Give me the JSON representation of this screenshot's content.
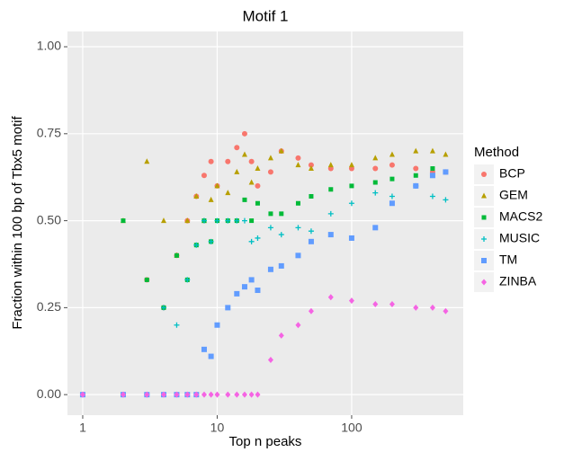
{
  "chart_data": {
    "type": "scatter",
    "title": "Motif 1",
    "x_label": "Top n peaks",
    "y_label": "Fraction within 100 bp of Tbx5 motif",
    "legend_title": "Method",
    "legend_position": "right",
    "xscale": "log",
    "grid": true,
    "xlim": [
      0.77,
      676
    ],
    "ylim": [
      -0.059,
      1.044
    ],
    "xticks": [
      1,
      10,
      100
    ],
    "yticks": [
      {
        "value": 0,
        "label": "0.00"
      },
      {
        "value": 0.25,
        "label": "0.25"
      },
      {
        "value": 0.5,
        "label": "0.50"
      },
      {
        "value": 0.75,
        "label": "0.75"
      },
      {
        "value": 1,
        "label": "1.00"
      }
    ],
    "x": [
      1,
      2,
      3,
      4,
      5,
      6,
      7,
      8,
      9,
      10,
      12,
      14,
      16,
      18,
      20,
      25,
      30,
      40,
      50,
      70,
      100,
      150,
      200,
      300,
      400,
      500
    ],
    "series": [
      {
        "name": "BCP",
        "color": "#F8766D",
        "shape": "circle",
        "values": [
          0,
          0,
          0.33,
          0.25,
          0.4,
          0.5,
          0.57,
          0.63,
          0.67,
          0.6,
          0.67,
          0.71,
          0.75,
          0.67,
          0.6,
          0.64,
          0.7,
          0.68,
          0.66,
          0.65,
          0.65,
          0.65,
          0.66,
          0.65,
          0.64,
          0.64
        ]
      },
      {
        "name": "GEM",
        "color": "#B79F00",
        "shape": "triangle",
        "values": [
          0,
          0.5,
          0.67,
          0.5,
          0.4,
          0.5,
          0.57,
          0.5,
          0.56,
          0.6,
          0.58,
          0.64,
          0.69,
          0.61,
          0.65,
          0.68,
          0.7,
          0.66,
          0.65,
          0.66,
          0.66,
          0.68,
          0.69,
          0.7,
          0.7,
          0.69
        ]
      },
      {
        "name": "MACS2",
        "color": "#00BA38",
        "shape": "smallsquare",
        "values": [
          0,
          0.5,
          0.33,
          0.25,
          0.4,
          0.33,
          0.43,
          0.5,
          0.44,
          0.5,
          0.5,
          0.5,
          0.56,
          0.5,
          0.55,
          0.52,
          0.52,
          0.55,
          0.57,
          0.59,
          0.6,
          0.61,
          0.62,
          0.63,
          0.65,
          0.64
        ]
      },
      {
        "name": "MUSIC",
        "color": "#00BFC4",
        "shape": "plus",
        "values": [
          0,
          0,
          0,
          0.25,
          0.2,
          0.33,
          0.43,
          0.5,
          0.44,
          0.5,
          0.5,
          0.5,
          0.5,
          0.44,
          0.45,
          0.48,
          0.46,
          0.48,
          0.47,
          0.52,
          0.55,
          0.58,
          0.57,
          0.6,
          0.57,
          0.56
        ]
      },
      {
        "name": "TM",
        "color": "#619CFF",
        "shape": "square",
        "values": [
          0,
          0,
          0,
          0,
          0,
          0,
          0,
          0.13,
          0.11,
          0.2,
          0.25,
          0.29,
          0.31,
          0.33,
          0.3,
          0.36,
          0.37,
          0.4,
          0.44,
          0.46,
          0.45,
          0.48,
          0.55,
          0.6,
          0.63,
          0.64
        ]
      },
      {
        "name": "ZINBA",
        "color": "#F564E3",
        "shape": "diamond",
        "values": [
          0,
          0,
          0,
          0,
          0,
          0,
          0,
          0,
          0,
          0,
          0,
          0,
          0,
          0,
          0,
          0.1,
          0.17,
          0.2,
          0.24,
          0.28,
          0.27,
          0.26,
          0.26,
          0.25,
          0.25,
          0.24
        ]
      }
    ]
  }
}
